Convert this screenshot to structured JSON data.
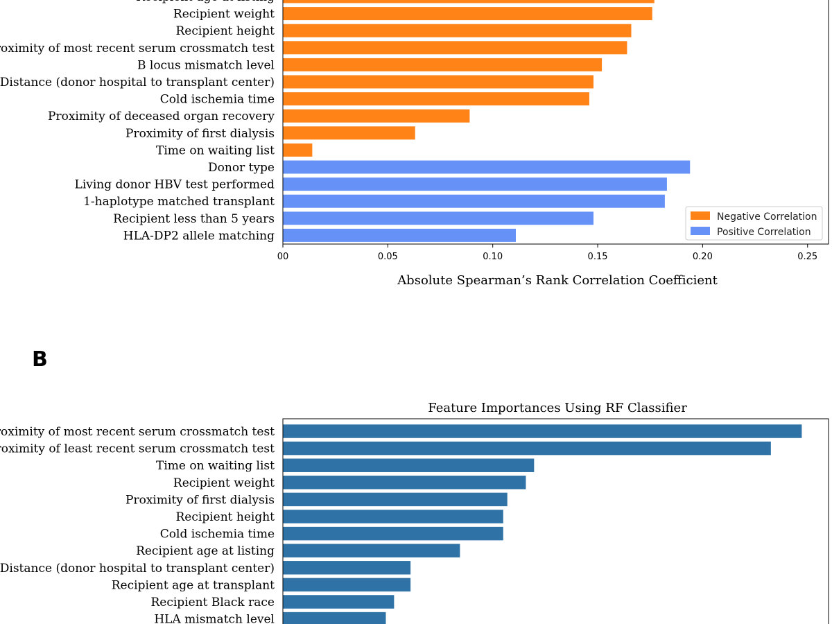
{
  "panel_b_label": "B",
  "chart_data": [
    {
      "type": "bar",
      "orientation": "horizontal",
      "title": "",
      "xlabel": "Absolute Spearman’s Rank Correlation Coefficient",
      "xlim": [
        0,
        0.26
      ],
      "xticks": [
        0,
        0.05,
        0.1,
        0.15,
        0.2,
        0.25
      ],
      "xtick_labels": [
        "00",
        "0.05",
        "0.10",
        "0.15",
        "0.20",
        "0.25"
      ],
      "categories": [
        "Recipient age at listing",
        "Recipient weight",
        "Recipient height",
        "Proximity of most recent serum crossmatch test",
        "B locus mismatch level",
        "Distance (donor hospital to transplant center)",
        "Cold ischemia time",
        "Proximity of deceased organ recovery",
        "Proximity of first dialysis",
        "Time on waiting list",
        "Donor type",
        "Living donor HBV test performed",
        "1-haplotype matched transplant",
        "Recipient less than 5 years",
        "HLA-DP2 allele matching"
      ],
      "values": [
        0.177,
        0.176,
        0.166,
        0.164,
        0.152,
        0.148,
        0.146,
        0.089,
        0.063,
        0.014,
        0.194,
        0.183,
        0.182,
        0.148,
        0.111
      ],
      "series_of_bar": [
        "neg",
        "neg",
        "neg",
        "neg",
        "neg",
        "neg",
        "neg",
        "neg",
        "neg",
        "neg",
        "pos",
        "pos",
        "pos",
        "pos",
        "pos"
      ],
      "legend": [
        {
          "key": "neg",
          "name": "Negative Correlation",
          "color": "#ff8316"
        },
        {
          "key": "pos",
          "name": "Positive Correlation",
          "color": "#6691f7"
        }
      ],
      "legend_position": "lower-right"
    },
    {
      "type": "bar",
      "orientation": "horizontal",
      "title": "Feature Importances Using RF Classifier",
      "xlabel": "",
      "xlim": [
        0,
        0.265
      ],
      "color": "#2f73a6",
      "categories": [
        "Proximity of most recent serum crossmatch test",
        "Proximity of least recent serum crossmatch test",
        "Time on waiting list",
        "Recipient weight",
        "Proximity of first dialysis",
        "Recipient height",
        "Cold ischemia time",
        "Recipient age at listing",
        "Distance (donor hospital to transplant center)",
        "Recipient age at transplant",
        "Recipient Black race",
        "HLA mismatch level"
      ],
      "values": [
        0.252,
        0.237,
        0.122,
        0.118,
        0.109,
        0.107,
        0.107,
        0.086,
        0.062,
        0.062,
        0.054,
        0.05
      ]
    }
  ]
}
